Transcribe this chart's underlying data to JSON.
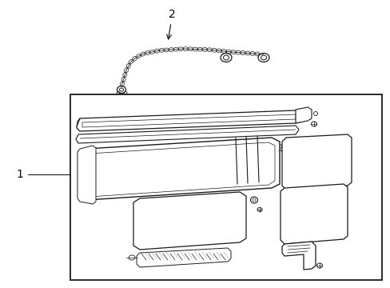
{
  "background_color": "#ffffff",
  "line_color": "#1a1a1a",
  "label_color": "#000000",
  "fig_width": 4.89,
  "fig_height": 3.6,
  "dpi": 100,
  "label1": "1",
  "label2": "2"
}
